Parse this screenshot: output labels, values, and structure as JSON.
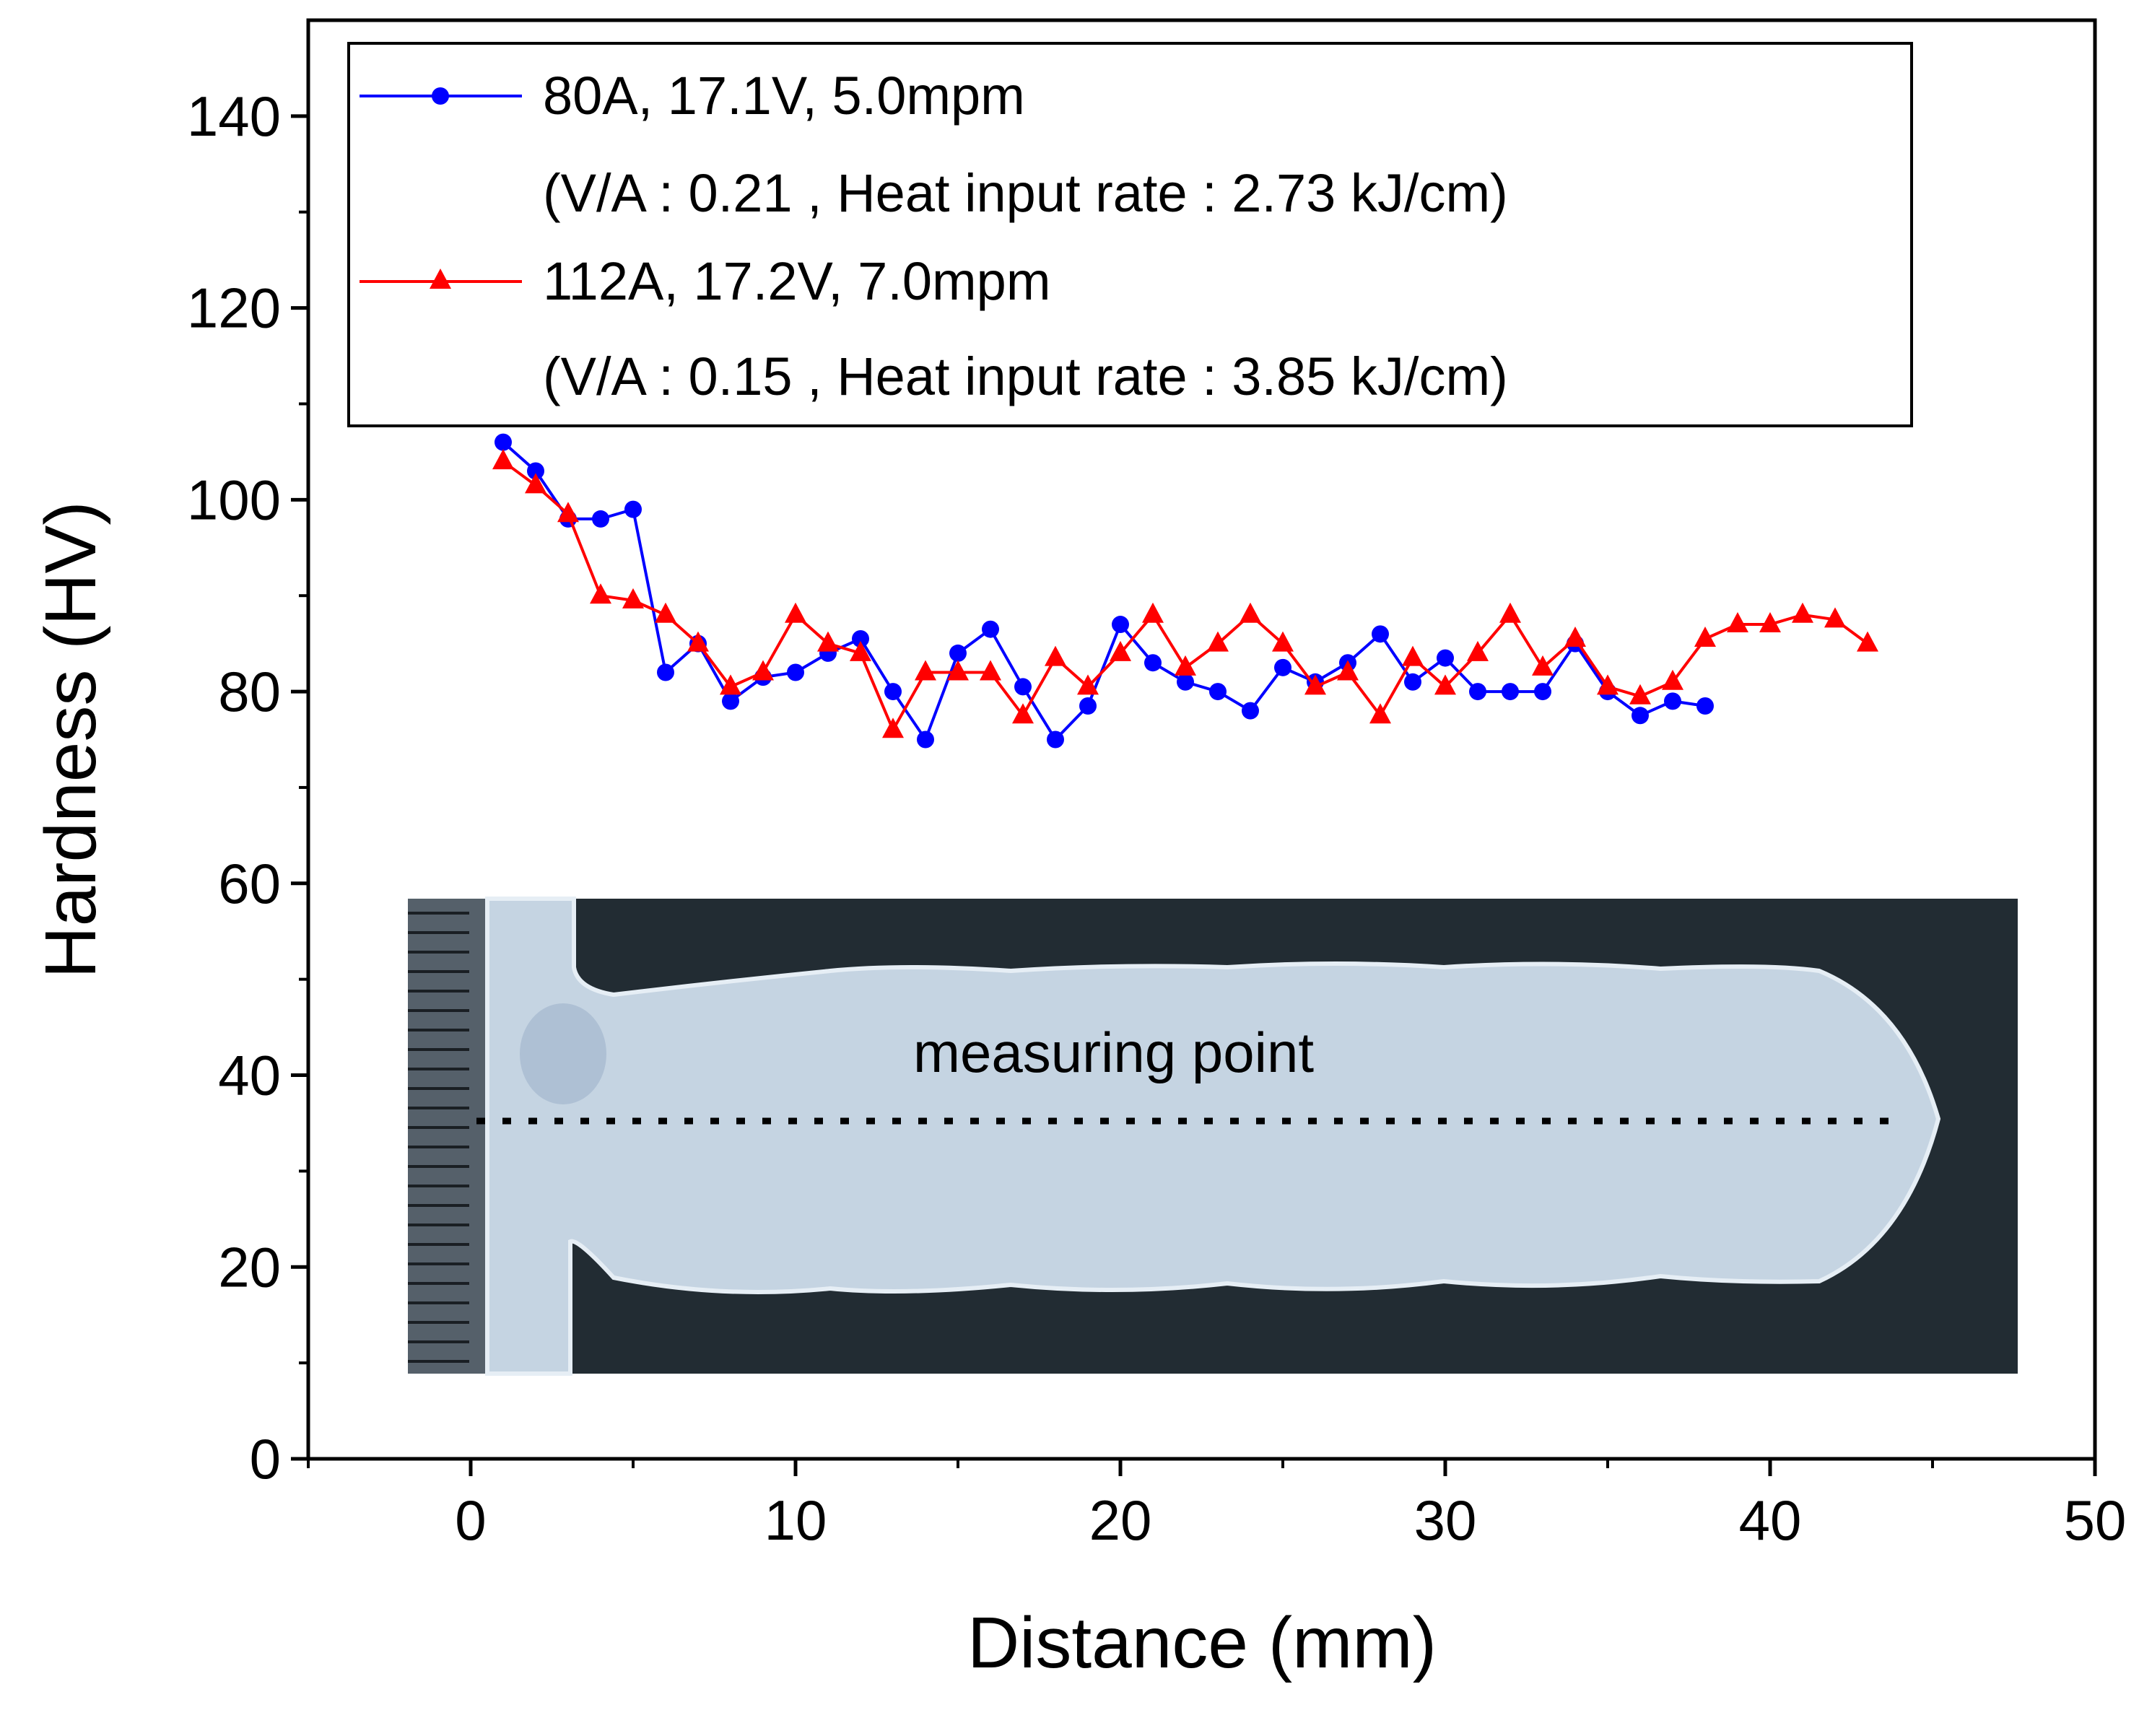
{
  "chart_data": {
    "type": "line",
    "title": "",
    "xlabel": "Distance (mm)",
    "ylabel": "Hardness (HV)",
    "xlim": [
      -5,
      50
    ],
    "ylim": [
      0,
      150
    ],
    "x_ticks": [
      0,
      10,
      20,
      30,
      40,
      50
    ],
    "y_ticks": [
      0,
      20,
      40,
      60,
      80,
      100,
      120,
      140
    ],
    "grid": false,
    "legend_position": "top-left",
    "series": [
      {
        "name": "80A, 17.1V, 5.0mpm",
        "detail": "(V/A : 0.21 , Heat input rate : 2.73 kJ/cm)",
        "color": "#0000ff",
        "marker": "circle",
        "x": [
          1,
          2,
          3,
          4,
          5,
          6,
          7,
          8,
          9,
          10,
          11,
          12,
          13,
          14,
          15,
          16,
          17,
          18,
          19,
          20,
          21,
          22,
          23,
          24,
          25,
          26,
          27,
          28,
          29,
          30,
          31,
          32,
          33,
          34,
          35,
          36,
          37,
          38
        ],
        "values": [
          106,
          103,
          98,
          98,
          99,
          82,
          85,
          79,
          81.5,
          82,
          84,
          85.5,
          80,
          75,
          84,
          86.5,
          80.5,
          75,
          78.5,
          87,
          83,
          81,
          80,
          78,
          82.5,
          81,
          83,
          86,
          81,
          83.5,
          80,
          80,
          80,
          85,
          80,
          77.5,
          79,
          78.5
        ]
      },
      {
        "name": "112A, 17.2V, 7.0mpm",
        "detail": "(V/A : 0.15 , Heat input rate : 3.85 kJ/cm)",
        "color": "#ff0000",
        "marker": "triangle",
        "x": [
          1,
          2,
          3,
          4,
          5,
          6,
          7,
          8,
          9,
          10,
          11,
          12,
          13,
          14,
          15,
          16,
          17,
          18,
          19,
          20,
          21,
          22,
          23,
          24,
          25,
          26,
          27,
          28,
          29,
          30,
          31,
          32,
          33,
          34,
          35,
          36,
          37,
          38,
          39,
          40,
          41,
          42,
          43
        ],
        "values": [
          104,
          101.5,
          98.5,
          90,
          89.5,
          88,
          85,
          80.5,
          82,
          88,
          85,
          84,
          76,
          82,
          82,
          82,
          77.5,
          83.5,
          80.5,
          84,
          88,
          82.5,
          85,
          88,
          85,
          80.5,
          82,
          77.5,
          83.5,
          80.5,
          84,
          88,
          82.5,
          85.5,
          80.5,
          79.5,
          81,
          85.5,
          87,
          87,
          88,
          87.5,
          85
        ]
      }
    ],
    "annotations": [
      "measuring point"
    ]
  },
  "inset": {
    "description_label": "measuring point",
    "background_color": "#1f2a32",
    "specimen_color": "#c9d8e6",
    "ruler_color": "#5a6670"
  }
}
